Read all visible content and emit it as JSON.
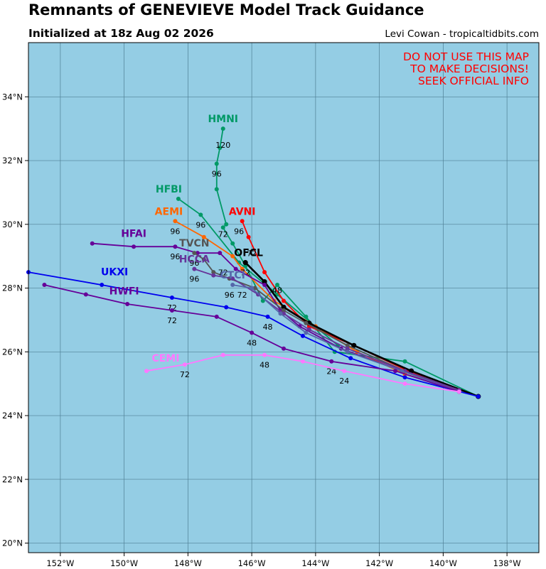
{
  "header": {
    "title": "Remnants of GENEVIEVE Model Track Guidance",
    "subtitle": "Initialized at 18z Aug 02 2026",
    "credit": "Levi Cowan - tropicaltidbits.com"
  },
  "warning": {
    "lines": [
      "DO NOT USE THIS MAP",
      "TO MAKE DECISIONS!",
      "SEEK OFFICIAL INFO"
    ],
    "color": "#ff0000"
  },
  "map": {
    "lon_range": [
      -153,
      -137
    ],
    "lat_range": [
      19.7,
      35.7
    ],
    "ocean_color": "#94cde4",
    "grid_color": "#4f7f94",
    "lon_ticks": [
      -152,
      -150,
      -148,
      -146,
      -144,
      -142,
      -140,
      -138
    ],
    "lon_tick_labels": [
      "152°W",
      "150°W",
      "148°W",
      "146°W",
      "144°W",
      "142°W",
      "140°W",
      "138°W"
    ],
    "lat_ticks": [
      20,
      22,
      24,
      26,
      28,
      30,
      32,
      34
    ],
    "lat_tick_labels": [
      "20°N",
      "22°N",
      "24°N",
      "26°N",
      "28°N",
      "30°N",
      "32°N",
      "34°N"
    ]
  },
  "tracks": [
    {
      "name": "HMNI",
      "color": "#009966",
      "points": [
        [
          -138.9,
          24.6
        ],
        [
          -141.2,
          25.7
        ],
        [
          -143.4,
          26.0
        ],
        [
          -144.3,
          27.1
        ],
        [
          -145.2,
          28.1
        ],
        [
          -145.65,
          27.6
        ],
        [
          -146.2,
          28.7
        ],
        [
          -146.6,
          29.4
        ],
        [
          -146.9,
          29.9
        ],
        [
          -146.8,
          30.0
        ],
        [
          -147.1,
          31.1
        ],
        [
          -147.1,
          31.9
        ],
        [
          -147.0,
          32.4
        ],
        [
          -146.9,
          33.0
        ]
      ],
      "labels": [
        {
          "text": "72",
          "lon": -146.9,
          "lat": 29.6
        },
        {
          "text": "96",
          "lon": -147.1,
          "lat": 31.5
        },
        {
          "text": "120",
          "lon": -146.9,
          "lat": 32.4
        }
      ],
      "name_pos": [
        -146.9,
        33.2
      ]
    },
    {
      "name": "HFBI",
      "color": "#009966",
      "points": [
        [
          -143.3,
          26.2
        ],
        [
          -145.2,
          27.8
        ],
        [
          -146.4,
          28.8
        ],
        [
          -147.6,
          30.3
        ],
        [
          -148.3,
          30.8
        ]
      ],
      "labels": [
        {
          "text": "96",
          "lon": -147.6,
          "lat": 29.9
        }
      ],
      "name_pos": [
        -148.6,
        31.0
      ]
    },
    {
      "name": "AEMI",
      "color": "#ff6600",
      "points": [
        [
          -139.5,
          24.8
        ],
        [
          -141.2,
          25.3
        ],
        [
          -142.7,
          26.0
        ],
        [
          -144.0,
          26.8
        ],
        [
          -145.3,
          27.6
        ],
        [
          -146.3,
          28.6
        ],
        [
          -146.6,
          29.0
        ],
        [
          -147.5,
          29.6
        ],
        [
          -148.4,
          30.1
        ]
      ],
      "labels": [
        {
          "text": "96",
          "lon": -148.4,
          "lat": 29.7
        }
      ],
      "name_pos": [
        -148.6,
        30.3
      ]
    },
    {
      "name": "AVNI",
      "color": "#ff0000",
      "points": [
        [
          -139.5,
          24.75
        ],
        [
          -141.1,
          25.4
        ],
        [
          -142.8,
          26.2
        ],
        [
          -144.2,
          26.8
        ],
        [
          -145.0,
          27.6
        ],
        [
          -145.6,
          28.5
        ],
        [
          -146.1,
          29.6
        ],
        [
          -146.3,
          30.1
        ]
      ],
      "labels": [
        {
          "text": "72",
          "lon": -146.0,
          "lat": 29.0
        },
        {
          "text": "96",
          "lon": -146.4,
          "lat": 29.7
        }
      ],
      "name_pos": [
        -146.3,
        30.3
      ]
    },
    {
      "name": "OFCL",
      "color": "#000000",
      "points": [
        [
          -138.9,
          24.6
        ],
        [
          -141.0,
          25.4
        ],
        [
          -142.8,
          26.2
        ],
        [
          -144.2,
          26.9
        ],
        [
          -145.0,
          27.4
        ],
        [
          -145.6,
          28.2
        ],
        [
          -146.2,
          28.8
        ]
      ],
      "labels": [
        {
          "text": "72",
          "lon": -146.2,
          "lat": 28.4
        },
        {
          "text": "48",
          "lon": -145.2,
          "lat": 27.85
        }
      ],
      "name_pos": [
        -146.1,
        29.0
      ]
    },
    {
      "name": "HFAI",
      "color": "#660099",
      "points": [
        [
          -139.5,
          24.8
        ],
        [
          -141.3,
          25.4
        ],
        [
          -143.2,
          26.1
        ],
        [
          -144.5,
          26.8
        ],
        [
          -145.1,
          27.3
        ],
        [
          -145.6,
          28.1
        ],
        [
          -146.5,
          28.6
        ],
        [
          -147.0,
          29.1
        ],
        [
          -147.7,
          29.1
        ],
        [
          -148.4,
          29.3
        ],
        [
          -149.7,
          29.3
        ],
        [
          -151.0,
          29.4
        ]
      ],
      "labels": [
        {
          "text": "96",
          "lon": -148.4,
          "lat": 28.9
        }
      ],
      "name_pos": [
        -149.7,
        29.6
      ]
    },
    {
      "name": "TVCN",
      "color": "#555555",
      "points": [
        [
          -139.5,
          24.8
        ],
        [
          -141.2,
          25.4
        ],
        [
          -143.0,
          26.2
        ],
        [
          -144.3,
          26.9
        ],
        [
          -145.0,
          27.3
        ],
        [
          -145.9,
          28.0
        ],
        [
          -146.7,
          28.3
        ],
        [
          -147.2,
          28.5
        ],
        [
          -147.5,
          28.9
        ],
        [
          -147.8,
          29.1
        ]
      ],
      "labels": [
        {
          "text": "96",
          "lon": -147.8,
          "lat": 28.7
        }
      ],
      "name_pos": [
        -147.8,
        29.3
      ]
    },
    {
      "name": "HCCA",
      "color": "#663399",
      "points": [
        [
          -139.5,
          24.8
        ],
        [
          -141.2,
          25.4
        ],
        [
          -143.0,
          26.1
        ],
        [
          -144.2,
          26.7
        ],
        [
          -145.0,
          27.2
        ],
        [
          -145.8,
          27.8
        ],
        [
          -146.6,
          28.3
        ],
        [
          -147.2,
          28.4
        ],
        [
          -147.8,
          28.6
        ]
      ],
      "labels": [
        {
          "text": "72",
          "lon": -146.9,
          "lat": 28.4
        },
        {
          "text": "96",
          "lon": -147.8,
          "lat": 28.2
        }
      ],
      "name_pos": [
        -147.8,
        28.8
      ]
    },
    {
      "name": "CTCI",
      "color": "#5566aa",
      "points": [
        [
          -139.5,
          24.75
        ],
        [
          -141.3,
          25.4
        ],
        [
          -143.0,
          26.0
        ],
        [
          -144.3,
          26.6
        ],
        [
          -145.1,
          27.2
        ],
        [
          -146.0,
          28.0
        ],
        [
          -146.6,
          28.1
        ]
      ],
      "labels": [
        {
          "text": "72",
          "lon": -146.3,
          "lat": 27.7
        },
        {
          "text": "96",
          "lon": -146.7,
          "lat": 27.7
        }
      ],
      "name_pos": [
        -146.6,
        28.3
      ]
    },
    {
      "name": "UKXI",
      "color": "#0000ee",
      "points": [
        [
          -138.9,
          24.6
        ],
        [
          -141.2,
          25.2
        ],
        [
          -142.9,
          25.8
        ],
        [
          -144.4,
          26.5
        ],
        [
          -145.5,
          27.1
        ],
        [
          -146.8,
          27.4
        ],
        [
          -148.5,
          27.7
        ],
        [
          -150.7,
          28.1
        ],
        [
          -153.0,
          28.5
        ]
      ],
      "labels": [
        {
          "text": "72",
          "lon": -148.5,
          "lat": 27.3
        },
        {
          "text": "48",
          "lon": -145.5,
          "lat": 26.7
        }
      ],
      "name_pos": [
        -150.3,
        28.4
      ]
    },
    {
      "name": "HWFI",
      "color": "#660099",
      "points": [
        [
          -139.5,
          24.75
        ],
        [
          -141.5,
          25.4
        ],
        [
          -143.5,
          25.7
        ],
        [
          -145.0,
          26.1
        ],
        [
          -146.0,
          26.6
        ],
        [
          -147.1,
          27.1
        ],
        [
          -148.5,
          27.3
        ],
        [
          -149.9,
          27.5
        ],
        [
          -151.2,
          27.8
        ],
        [
          -152.5,
          28.1
        ]
      ],
      "labels": [
        {
          "text": "72",
          "lon": -148.5,
          "lat": 26.9
        },
        {
          "text": "48",
          "lon": -146.0,
          "lat": 26.2
        },
        {
          "text": "24",
          "lon": -143.5,
          "lat": 25.3
        }
      ],
      "name_pos": [
        -150.0,
        27.8
      ]
    },
    {
      "name": "CEMI",
      "color": "#ff77ff",
      "points": [
        [
          -139.5,
          24.75
        ],
        [
          -141.2,
          25.0
        ],
        [
          -143.1,
          25.4
        ],
        [
          -144.4,
          25.7
        ],
        [
          -145.6,
          25.9
        ],
        [
          -146.9,
          25.9
        ],
        [
          -148.1,
          25.6
        ],
        [
          -149.3,
          25.4
        ]
      ],
      "labels": [
        {
          "text": "72",
          "lon": -148.1,
          "lat": 25.2
        },
        {
          "text": "48",
          "lon": -145.6,
          "lat": 25.5
        },
        {
          "text": "24",
          "lon": -143.1,
          "lat": 25.0
        }
      ],
      "name_pos": [
        -148.7,
        25.7
      ]
    }
  ]
}
